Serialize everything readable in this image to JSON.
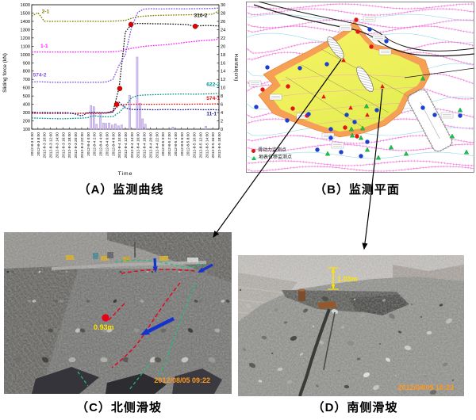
{
  "figure": {
    "captions": {
      "a": "（A）监测曲线",
      "b": "（B）监测平面",
      "c": "（C）北侧滑坡",
      "d": "（D）南侧滑坡"
    }
  },
  "chart_data": {
    "type": "line",
    "xlabel": "Time",
    "ylabel_left": "Sliding force (kN)",
    "ylabel_right": "Rainfall(cm)",
    "ylim_left": [
      100,
      1600
    ],
    "ytick_left_step": 100,
    "ylim_right": [
      0,
      30
    ],
    "ytick_right_step": 2,
    "x_labels": [
      "2012-8-3 6:00",
      "2012-8-3 8:00",
      "2012-8-3 10:00",
      "2012-8-3 12:00",
      "2012-8-3 14:00",
      "2012-8-3 16:00",
      "2012-8-3 18:00",
      "2012-8-3 20:00",
      "2012-8-3 22:00",
      "2012-8-4 0:00",
      "2012-8-4 2:00",
      "2012-8-4 4:00",
      "2012-8-4 6:00",
      "2012-8-4 8:00",
      "2012-8-4 10:00",
      "2012-8-4 12:00",
      "2012-8-4 14:00",
      "2012-8-4 16:00",
      "2012-8-4 18:00",
      "2012-8-4 20:00",
      "2012-8-4 22:00",
      "2012-8-5 0:00",
      "2012-8-5 2:00",
      "2012-8-5 4:00",
      "2012-8-5 6:00",
      "2012-8-5 8:00",
      "2012-8-5 10:00",
      "2012-8-5 12:00",
      "2012-8-5 14:00",
      "2012-8-5 16:00",
      "2012-8-5 18:00"
    ],
    "series": [
      {
        "name": "2-1",
        "color": "#7f7f00",
        "values": [
          1462,
          1505,
          1402,
          1399,
          1400,
          1400,
          1399,
          1400,
          1401,
          1402,
          1400,
          1399,
          1400,
          1403,
          1406,
          1412,
          1438,
          1455,
          1462,
          1468,
          1471,
          1473,
          1475,
          1477,
          1478,
          1480,
          1481,
          1482,
          1483,
          1486,
          1530
        ]
      },
      {
        "name": "310-2",
        "color": "#161616",
        "values": [
          291,
          293,
          290,
          292,
          290,
          291,
          292,
          290,
          291,
          293,
          290,
          292,
          294,
          310,
          600,
          1270,
          1368,
          1375,
          1374,
          1372,
          1371,
          1370,
          1368,
          1366,
          1364,
          1360,
          1341,
          1347,
          1350,
          1348,
          1344
        ]
      },
      {
        "name": "1-1",
        "color": "#ff1aff",
        "values": [
          1031,
          1030,
          1032,
          1030,
          1031,
          1030,
          1031,
          1030,
          1032,
          1031,
          1030,
          1032,
          1031,
          1033,
          1040,
          1058,
          1075,
          1088,
          1098,
          1105,
          1110,
          1116,
          1122,
          1130,
          1140,
          1150,
          1158,
          1165,
          1170,
          1176,
          1186
        ]
      },
      {
        "name": "574-2",
        "color": "#7d50e0",
        "values": [
          668,
          672,
          669,
          666,
          665,
          664,
          666,
          667,
          665,
          664,
          666,
          665,
          670,
          700,
          870,
          1000,
          1330,
          1510,
          1548,
          1552,
          1550,
          1549,
          1551,
          1552,
          1550,
          1551,
          1552,
          1553,
          1554,
          1556,
          1560
        ]
      },
      {
        "name": "622-2",
        "color": "#008f8f",
        "values": [
          236,
          233,
          230,
          228,
          226,
          225,
          228,
          231,
          233,
          240,
          262,
          252,
          249,
          252,
          300,
          380,
          480,
          505,
          512,
          515,
          517,
          519,
          521,
          523,
          524,
          523,
          521,
          523,
          525,
          527,
          533
        ]
      },
      {
        "name": "574-1",
        "color": "#e01010",
        "values": [
          294,
          291,
          292,
          290,
          293,
          291,
          292,
          290,
          293,
          292,
          291,
          294,
          296,
          320,
          388,
          398,
          400,
          401,
          400,
          399,
          400,
          401,
          400,
          402,
          401,
          400,
          402,
          403,
          402,
          404,
          406
        ]
      },
      {
        "name": "11-1",
        "color": "#1a1a8c",
        "values": [
          306,
          300,
          303,
          299,
          301,
          300,
          298,
          282,
          260,
          301,
          303,
          300,
          298,
          306,
          425,
          355,
          338,
          336,
          337,
          335,
          334,
          336,
          337,
          335,
          334,
          336,
          337,
          335,
          334,
          336,
          332
        ]
      }
    ],
    "labels": [
      {
        "text": "2-1",
        "x": 1.6,
        "y": 1500
      },
      {
        "text": "1-1",
        "x": 1.4,
        "y": 1085
      },
      {
        "text": "574-2",
        "x": 0.2,
        "y": 735
      },
      {
        "text": "310-2",
        "x": 26,
        "y": 1452
      },
      {
        "text": "622-2",
        "x": 28,
        "y": 622
      },
      {
        "text": "574-1",
        "x": 28,
        "y": 452
      },
      {
        "text": "11-1",
        "x": 28,
        "y": 268
      }
    ],
    "highlight_points": {
      "series": "310-2",
      "color": "#e00000",
      "points": [
        [
          13.6,
          400
        ],
        [
          14.1,
          590
        ],
        [
          15.9,
          1362
        ],
        [
          26.2,
          1340
        ]
      ]
    },
    "rainfall_bars": {
      "color": "#d9c9f2",
      "border": "#9b7fd4",
      "points": [
        [
          9.5,
          5.7
        ],
        [
          9.95,
          5.4
        ],
        [
          10.4,
          1.2
        ],
        [
          11.0,
          4.0
        ],
        [
          11.5,
          1.5
        ],
        [
          11.9,
          1.4
        ],
        [
          12.4,
          1.5
        ],
        [
          12.9,
          1.0
        ],
        [
          13.4,
          1.3
        ],
        [
          13.9,
          0.8
        ],
        [
          14.4,
          1.0
        ],
        [
          15.7,
          8.2
        ],
        [
          16.9,
          17.4
        ],
        [
          17.35,
          6.3
        ],
        [
          17.75,
          2.5
        ],
        [
          18.2,
          1.2
        ],
        [
          22.6,
          0.5
        ],
        [
          27.9,
          0.7
        ]
      ]
    }
  },
  "map": {
    "legend": [
      {
        "marker": "red-dot",
        "label": "滑动力监测点"
      },
      {
        "marker": "green-triangle",
        "label": "地表位移监测点"
      }
    ]
  },
  "photo_c": {
    "annotation": "0.93m",
    "timestamp": "2012/08/05 09:22"
  },
  "photo_d": {
    "annotation": "1.03m",
    "timestamp": "2012/08/05 10:23"
  }
}
